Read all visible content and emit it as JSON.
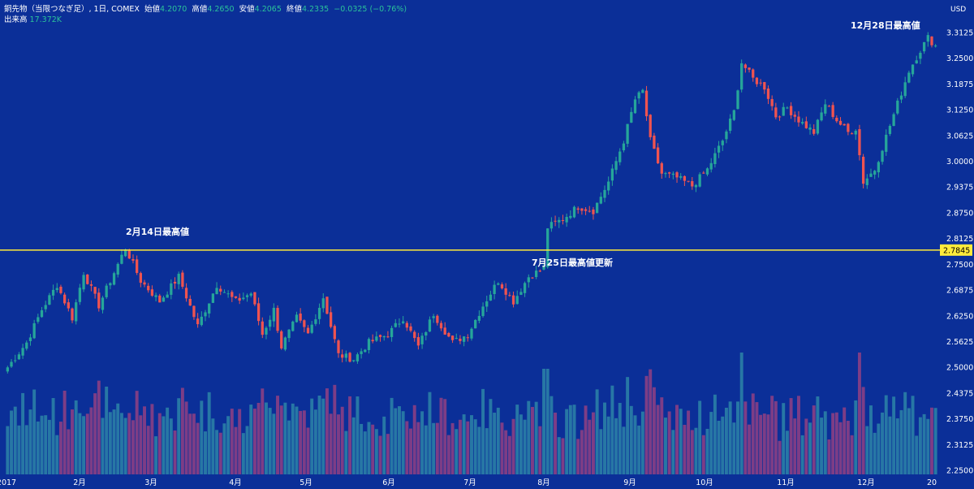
{
  "header": {
    "symbol": "銅先物（当限つなぎ足）, 1日, COMEX",
    "open_label": "始値",
    "open_value": "4.2070",
    "high_label": "高値",
    "high_value": "4.2650",
    "low_label": "安値",
    "low_value": "4.2065",
    "close_label": "終値",
    "close_value": "4.2335",
    "change": "−0.0325 (−0.76%)",
    "volume_label": "出来高",
    "volume_value": "17.372K"
  },
  "annotations": {
    "feb_high": "2月14日最高値",
    "jul_high": "7月25日最高値更新",
    "dec_high": "12月28日最高値"
  },
  "colors": {
    "background": "#0b2f98",
    "up": "#26a69a",
    "down": "#ef5350",
    "vol_up": "#2a7fa6",
    "vol_down": "#8a3f84",
    "level_line": "#ffeb3b",
    "level_label_bg": "#ffeb3b"
  },
  "chart_data": {
    "type": "candlestick",
    "currency": "USD",
    "y_ticks": [
      "3.3125",
      "3.2500",
      "3.1875",
      "3.1250",
      "3.0625",
      "3.0000",
      "2.9375",
      "2.8750",
      "2.8125",
      "2.7500",
      "2.6875",
      "2.6250",
      "2.5625",
      "2.5000",
      "2.4375",
      "2.3750",
      "2.3125",
      "2.2500"
    ],
    "y_range": [
      2.25,
      3.34
    ],
    "x_labels": [
      "2017",
      "2月",
      "3月",
      "4月",
      "5月",
      "6月",
      "7月",
      "8月",
      "9月",
      "10月",
      "11月",
      "12月",
      "20"
    ],
    "level_line": {
      "value": 2.7845,
      "label": "2.7845"
    },
    "price_path": [
      [
        0,
        2.5
      ],
      [
        5,
        2.56
      ],
      [
        9,
        2.64
      ],
      [
        13,
        2.7
      ],
      [
        17,
        2.62
      ],
      [
        20,
        2.73
      ],
      [
        24,
        2.65
      ],
      [
        29,
        2.75
      ],
      [
        31,
        2.79
      ],
      [
        35,
        2.71
      ],
      [
        40,
        2.66
      ],
      [
        45,
        2.72
      ],
      [
        50,
        2.6
      ],
      [
        55,
        2.7
      ],
      [
        60,
        2.66
      ],
      [
        64,
        2.68
      ],
      [
        67,
        2.58
      ],
      [
        70,
        2.64
      ],
      [
        72,
        2.55
      ],
      [
        76,
        2.62
      ],
      [
        79,
        2.58
      ],
      [
        83,
        2.67
      ],
      [
        87,
        2.53
      ],
      [
        91,
        2.52
      ],
      [
        95,
        2.56
      ],
      [
        100,
        2.58
      ],
      [
        104,
        2.62
      ],
      [
        108,
        2.55
      ],
      [
        112,
        2.63
      ],
      [
        117,
        2.56
      ],
      [
        121,
        2.58
      ],
      [
        125,
        2.65
      ],
      [
        129,
        2.71
      ],
      [
        133,
        2.66
      ],
      [
        137,
        2.72
      ],
      [
        141,
        2.74
      ],
      [
        142,
        2.84
      ],
      [
        146,
        2.86
      ],
      [
        150,
        2.89
      ],
      [
        154,
        2.88
      ],
      [
        158,
        2.95
      ],
      [
        162,
        3.05
      ],
      [
        165,
        3.15
      ],
      [
        167,
        3.17
      ],
      [
        169,
        3.05
      ],
      [
        172,
        2.97
      ],
      [
        176,
        2.96
      ],
      [
        180,
        2.94
      ],
      [
        184,
        2.98
      ],
      [
        188,
        3.05
      ],
      [
        191,
        3.12
      ],
      [
        193,
        3.24
      ],
      [
        196,
        3.2
      ],
      [
        199,
        3.18
      ],
      [
        202,
        3.11
      ],
      [
        205,
        3.13
      ],
      [
        208,
        3.1
      ],
      [
        212,
        3.07
      ],
      [
        215,
        3.14
      ],
      [
        218,
        3.1
      ],
      [
        221,
        3.07
      ],
      [
        223,
        3.08
      ],
      [
        225,
        2.95
      ],
      [
        228,
        2.98
      ],
      [
        231,
        3.06
      ],
      [
        234,
        3.14
      ],
      [
        237,
        3.22
      ],
      [
        240,
        3.27
      ],
      [
        242,
        3.3
      ],
      [
        244,
        3.28
      ]
    ]
  }
}
